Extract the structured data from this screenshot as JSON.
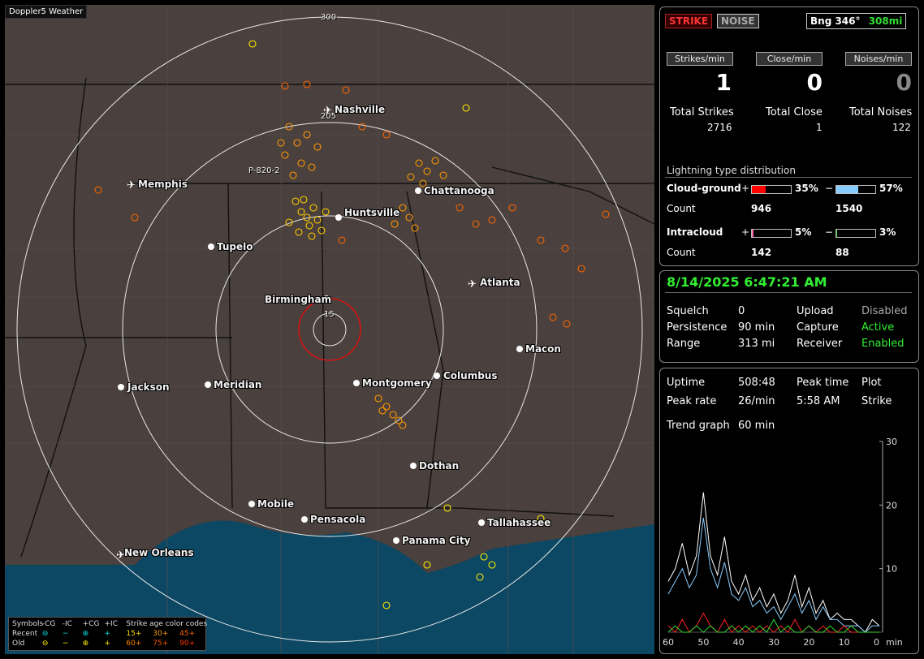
{
  "app": {
    "title": "Doppler5 Weather"
  },
  "map": {
    "ring_labels": [
      "300",
      "205",
      "15"
    ],
    "station_label": "P-820-2",
    "cities": [
      "Nashville",
      "Memphis",
      "Chattanooga",
      "Huntsville",
      "Tupelo",
      "Birmingham",
      "Atlanta",
      "Macon",
      "Jackson",
      "Meridian",
      "Montgomery",
      "Columbus",
      "Dothan",
      "Mobile",
      "Pensacola",
      "Tallahassee",
      "Panama City",
      "New Orleans"
    ]
  },
  "legend": {
    "symbols_label": "Symbols",
    "col_headers": [
      "-CG",
      "-IC",
      "+CG",
      "+IC"
    ],
    "age_header": "Strike age color codes",
    "recent_label": "Recent",
    "old_label": "Old",
    "recent_ages": [
      "15+",
      "30+",
      "45+"
    ],
    "old_ages": [
      "60+",
      "75+",
      "90+"
    ],
    "age_colors": [
      "#ffdd00",
      "#ff9900",
      "#ff6600",
      "#ff8800",
      "#ff5500",
      "#ff3300"
    ],
    "recent_color": "#00e0e0",
    "old_color": "#ffee00"
  },
  "controls": {
    "strike": "STRIKE",
    "noise": "NOISE",
    "bearing": "Bng 346°",
    "distance": "308mi"
  },
  "rates": {
    "headers": [
      "Strikes/min",
      "Close/min",
      "Noises/min"
    ],
    "values": [
      "1",
      "0",
      "0"
    ],
    "totals_labels": [
      "Total Strikes",
      "Total Close",
      "Total Noises"
    ],
    "totals_values": [
      "2716",
      "1",
      "122"
    ]
  },
  "distribution": {
    "title": "Lightning type distribution",
    "cg_label": "Cloud-ground",
    "ic_label": "Intracloud",
    "count_label": "Count",
    "plus": "+",
    "minus": "−",
    "cg_pos_pct": "35%",
    "cg_neg_pct": "57%",
    "ic_pos_pct": "5%",
    "ic_neg_pct": "3%",
    "cg_pos_count": "946",
    "cg_neg_count": "1540",
    "ic_pos_count": "142",
    "ic_neg_count": "88",
    "fills": {
      "cg_pos": 0.35,
      "cg_neg": 0.57,
      "ic_pos": 0.05,
      "ic_neg": 0.03
    },
    "colors": {
      "cg_pos": "#ff0000",
      "cg_neg": "#88ccff",
      "ic_pos": "#ff66aa",
      "ic_neg": "#33dd33"
    }
  },
  "status": {
    "datetime": "8/14/2025 6:47:21 AM",
    "rows": [
      [
        "Squelch",
        "0",
        "Upload",
        "Disabled"
      ],
      [
        "Persistence",
        "90 min",
        "Capture",
        "Active"
      ],
      [
        "Range",
        "313 mi",
        "Receiver",
        "Enabled"
      ]
    ]
  },
  "stats": {
    "uptime_label": "Uptime",
    "uptime": "508:48",
    "peak_time_label": "Peak time",
    "plot_label": "Plot",
    "peak_rate_label": "Peak rate",
    "peak_rate": "26/min",
    "peak_time": "5:58 AM",
    "plot_value": "Strike",
    "trend_label": "Trend graph",
    "trend_value": "60 min"
  },
  "chart_data": {
    "type": "line",
    "x": [
      60,
      58,
      56,
      54,
      52,
      50,
      48,
      46,
      44,
      42,
      40,
      38,
      36,
      34,
      32,
      30,
      28,
      26,
      24,
      22,
      20,
      18,
      16,
      14,
      12,
      10,
      8,
      6,
      4,
      2,
      0
    ],
    "series": [
      {
        "values": [
          8,
          10,
          14,
          9,
          12,
          22,
          12,
          9,
          15,
          8,
          6,
          9,
          5,
          7,
          4,
          6,
          3,
          5,
          9,
          4,
          7,
          3,
          5,
          2,
          3,
          2,
          2,
          1,
          0,
          2,
          1
        ]
      },
      {
        "values": [
          6,
          8,
          10,
          7,
          9,
          18,
          10,
          7,
          11,
          6,
          5,
          7,
          4,
          5,
          3,
          4,
          2,
          4,
          6,
          3,
          5,
          2,
          4,
          2,
          2,
          1,
          1,
          1,
          0,
          1,
          1
        ]
      },
      {
        "values": [
          1,
          0,
          2,
          0,
          1,
          3,
          1,
          0,
          2,
          0,
          1,
          0,
          1,
          0,
          1,
          0,
          1,
          0,
          2,
          0,
          1,
          0,
          1,
          0,
          0,
          1,
          0,
          0,
          0,
          0,
          0
        ]
      },
      {
        "values": [
          0,
          1,
          0,
          0,
          1,
          0,
          1,
          0,
          0,
          1,
          0,
          1,
          0,
          1,
          0,
          2,
          0,
          1,
          0,
          0,
          1,
          0,
          0,
          1,
          0,
          0,
          1,
          0,
          0,
          0,
          0
        ]
      }
    ],
    "series_colors": [
      "#ffffff",
      "#88ccff",
      "#ff2222",
      "#33dd33"
    ],
    "ylim": [
      0,
      30
    ],
    "yticks": [
      "30",
      "20",
      "10"
    ],
    "xticks": [
      "60",
      "50",
      "40",
      "30",
      "20",
      "10",
      "0"
    ],
    "xunit": "min"
  }
}
